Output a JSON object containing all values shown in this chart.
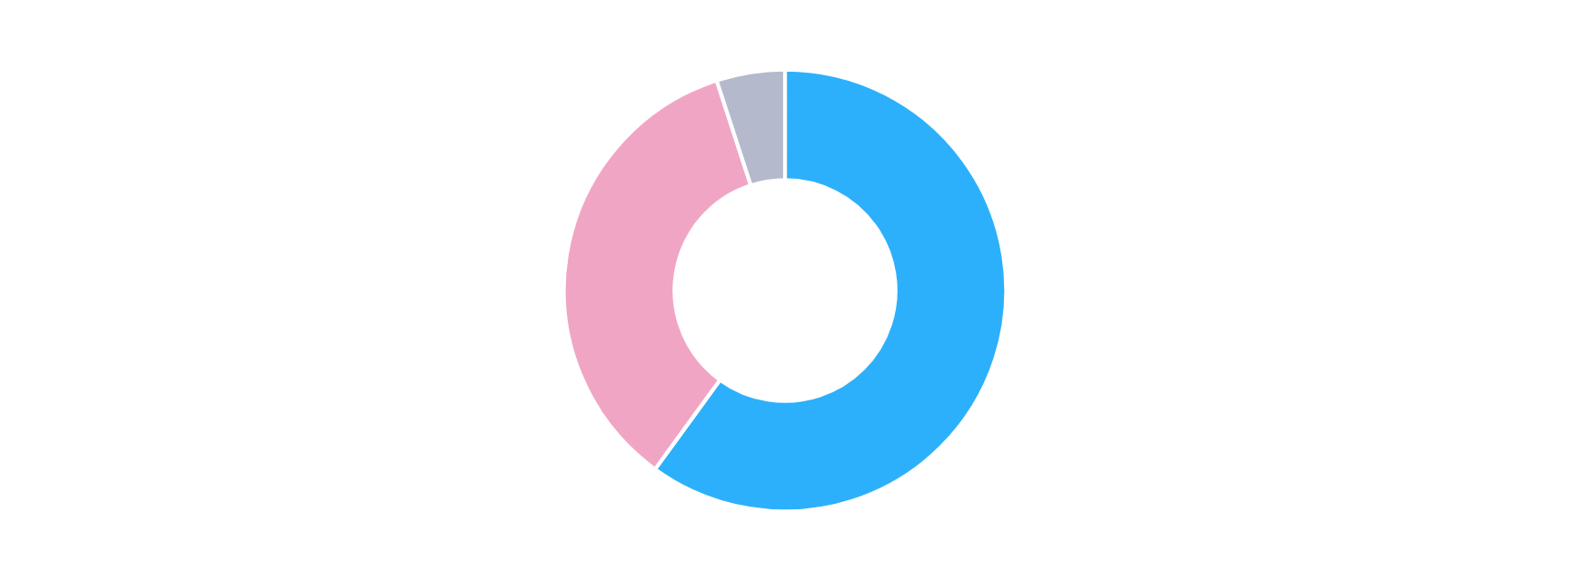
{
  "chart_data": {
    "type": "donut",
    "categories": [
      null,
      null,
      null
    ],
    "values": [
      60,
      35,
      5
    ],
    "colors": [
      "#2db0fb",
      "#f1a5c5",
      "#b4b9cc"
    ]
  }
}
